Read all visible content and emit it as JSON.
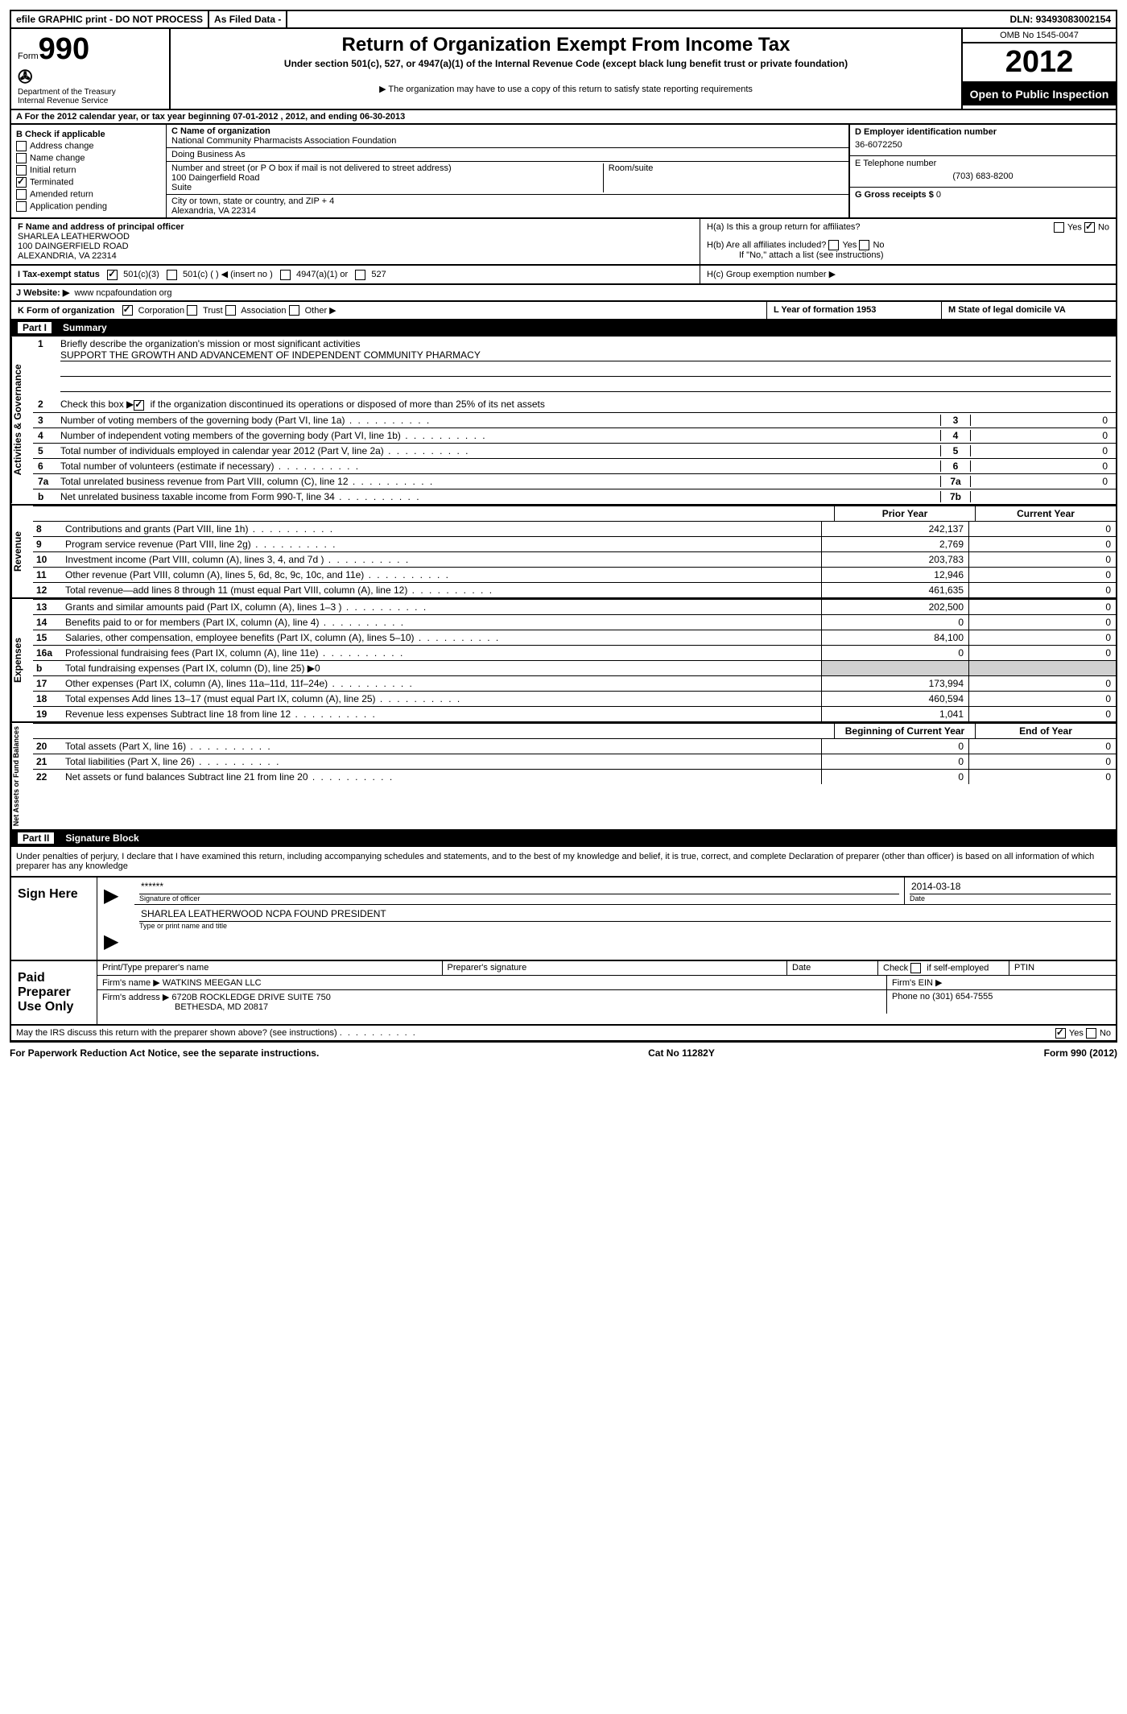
{
  "topbar": {
    "efile": "efile GRAPHIC print - DO NOT PROCESS",
    "asfiled": "As Filed Data -",
    "dln_label": "DLN:",
    "dln": "93493083002154"
  },
  "header": {
    "form_label": "Form",
    "form_num": "990",
    "dept": "Department of the Treasury",
    "irs": "Internal Revenue Service",
    "title": "Return of Organization Exempt From Income Tax",
    "subtitle": "Under section 501(c), 527, or 4947(a)(1) of the Internal Revenue Code (except black lung benefit trust or private foundation)",
    "note": "▶ The organization may have to use a copy of this return to satisfy state reporting requirements",
    "omb": "OMB No 1545-0047",
    "year": "2012",
    "open": "Open to Public Inspection"
  },
  "sectionA": "A  For the 2012 calendar year, or tax year beginning 07-01-2012     , 2012, and ending 06-30-2013",
  "checkboxes": {
    "header": "B Check if applicable",
    "items": [
      "Address change",
      "Name change",
      "Initial return",
      "Terminated",
      "Amended return",
      "Application pending"
    ]
  },
  "orgC": {
    "name_label": "C Name of organization",
    "name": "National Community Pharmacists Association Foundation",
    "dba_label": "Doing Business As",
    "street_label": "Number and street (or P O  box if mail is not delivered to street address)",
    "room_label": "Room/suite",
    "street": "100 Daingerfield Road",
    "suite": "Suite",
    "city_label": "City or town, state or country, and ZIP + 4",
    "city": "Alexandria, VA  22314"
  },
  "rightD": {
    "ein_label": "D Employer identification number",
    "ein": "36-6072250",
    "phone_label": "E Telephone number",
    "phone": "(703) 683-8200",
    "gross_label": "G Gross receipts $",
    "gross": "0"
  },
  "sectionF": {
    "label": "F  Name and address of principal officer",
    "name": "SHARLEA LEATHERWOOD",
    "addr1": "100 DAINGERFIELD ROAD",
    "addr2": "ALEXANDRIA, VA  22314"
  },
  "sectionH": {
    "ha": "H(a)  Is this a group return for affiliates?",
    "hb": "H(b)  Are all affiliates included?",
    "hb_note": "If \"No,\" attach a list  (see instructions)",
    "hc": "H(c)   Group exemption number ▶",
    "yes": "Yes",
    "no": "No"
  },
  "taxExempt": {
    "label": "I   Tax-exempt status",
    "opt1": "501(c)(3)",
    "opt2": "501(c) (   ) ◀ (insert no )",
    "opt3": "4947(a)(1) or",
    "opt4": "527"
  },
  "website": {
    "label": "J  Website: ▶",
    "value": "www ncpafoundation org"
  },
  "sectionK": {
    "label": "K Form of organization",
    "opts": [
      "Corporation",
      "Trust",
      "Association",
      "Other ▶"
    ],
    "year_label": "L Year of formation  1953",
    "state_label": "M State of legal domicile  VA"
  },
  "part1": {
    "title": "Part I",
    "label": "Summary"
  },
  "activities": {
    "vtab": "Activities & Governance",
    "line1": "Briefly describe the organization's mission or most significant activities",
    "mission": "SUPPORT THE GROWTH AND ADVANCEMENT OF INDEPENDENT COMMUNITY PHARMACY",
    "line2": "Check this box ▶    if the organization discontinued its operations or disposed of more than 25% of its net assets",
    "lines": [
      {
        "n": "3",
        "d": "Number of voting members of the governing body (Part VI, line 1a)",
        "box": "3",
        "v": "0"
      },
      {
        "n": "4",
        "d": "Number of independent voting members of the governing body (Part VI, line 1b)",
        "box": "4",
        "v": "0"
      },
      {
        "n": "5",
        "d": "Total number of individuals employed in calendar year 2012 (Part V, line 2a)",
        "box": "5",
        "v": "0"
      },
      {
        "n": "6",
        "d": "Total number of volunteers (estimate if necessary)",
        "box": "6",
        "v": "0"
      },
      {
        "n": "7a",
        "d": "Total unrelated business revenue from Part VIII, column (C), line 12",
        "box": "7a",
        "v": "0"
      },
      {
        "n": "b",
        "d": "Net unrelated business taxable income from Form 990-T, line 34",
        "box": "7b",
        "v": ""
      }
    ]
  },
  "revenue": {
    "vtab": "Revenue",
    "head1": "Prior Year",
    "head2": "Current Year",
    "rows": [
      {
        "n": "8",
        "d": "Contributions and grants (Part VIII, line 1h)",
        "p": "242,137",
        "c": "0"
      },
      {
        "n": "9",
        "d": "Program service revenue (Part VIII, line 2g)",
        "p": "2,769",
        "c": "0"
      },
      {
        "n": "10",
        "d": "Investment income (Part VIII, column (A), lines 3, 4, and 7d )",
        "p": "203,783",
        "c": "0"
      },
      {
        "n": "11",
        "d": "Other revenue (Part VIII, column (A), lines 5, 6d, 8c, 9c, 10c, and 11e)",
        "p": "12,946",
        "c": "0"
      },
      {
        "n": "12",
        "d": "Total revenue—add lines 8 through 11 (must equal Part VIII, column (A), line 12)",
        "p": "461,635",
        "c": "0"
      }
    ]
  },
  "expenses": {
    "vtab": "Expenses",
    "rows": [
      {
        "n": "13",
        "d": "Grants and similar amounts paid (Part IX, column (A), lines 1–3 )",
        "p": "202,500",
        "c": "0"
      },
      {
        "n": "14",
        "d": "Benefits paid to or for members (Part IX, column (A), line 4)",
        "p": "0",
        "c": "0"
      },
      {
        "n": "15",
        "d": "Salaries, other compensation, employee benefits (Part IX, column (A), lines 5–10)",
        "p": "84,100",
        "c": "0"
      },
      {
        "n": "16a",
        "d": "Professional fundraising fees (Part IX, column (A), line 11e)",
        "p": "0",
        "c": "0"
      },
      {
        "n": "b",
        "d": "Total fundraising expenses (Part IX, column (D), line 25) ▶0",
        "p": "",
        "c": "",
        "gray": true
      },
      {
        "n": "17",
        "d": "Other expenses (Part IX, column (A), lines 11a–11d, 11f–24e)",
        "p": "173,994",
        "c": "0"
      },
      {
        "n": "18",
        "d": "Total expenses  Add lines 13–17 (must equal Part IX, column (A), line 25)",
        "p": "460,594",
        "c": "0"
      },
      {
        "n": "19",
        "d": "Revenue less expenses  Subtract line 18 from line 12",
        "p": "1,041",
        "c": "0"
      }
    ]
  },
  "netassets": {
    "vtab": "Net Assets or Fund Balances",
    "head1": "Beginning of Current Year",
    "head2": "End of Year",
    "rows": [
      {
        "n": "20",
        "d": "Total assets (Part X, line 16)",
        "p": "0",
        "c": "0"
      },
      {
        "n": "21",
        "d": "Total liabilities (Part X, line 26)",
        "p": "0",
        "c": "0"
      },
      {
        "n": "22",
        "d": "Net assets or fund balances  Subtract line 21 from line 20",
        "p": "0",
        "c": "0"
      }
    ]
  },
  "part2": {
    "title": "Part II",
    "label": "Signature Block"
  },
  "perjury": "Under penalties of perjury, I declare that I have examined this return, including accompanying schedules and statements, and to the best of my knowledge and belief, it is true, correct, and complete  Declaration of preparer (other than officer) is based on all information of which preparer has any knowledge",
  "sign": {
    "label": "Sign Here",
    "sig": "******",
    "sig_label": "Signature of officer",
    "date": "2014-03-18",
    "date_label": "Date",
    "name": "SHARLEA LEATHERWOOD NCPA FOUND  PRESIDENT",
    "name_label": "Type or print name and title"
  },
  "paid": {
    "label": "Paid Preparer Use Only",
    "cols": [
      "Print/Type preparer's name",
      "Preparer's signature",
      "Date"
    ],
    "check_label": "Check         if self-employed",
    "ptin": "PTIN",
    "firm_name_label": "Firm's name    ▶",
    "firm_name": "WATKINS MEEGAN LLC",
    "firm_ein": "Firm's EIN ▶",
    "firm_addr_label": "Firm's address ▶",
    "firm_addr1": "6720B ROCKLEDGE DRIVE SUITE 750",
    "firm_addr2": "BETHESDA, MD  20817",
    "phone_label": "Phone no",
    "phone": "(301) 654-7555"
  },
  "discuss": "May the IRS discuss this return with the preparer shown above? (see instructions)",
  "footer": {
    "left": "For Paperwork Reduction Act Notice, see the separate instructions.",
    "center": "Cat No 11282Y",
    "right": "Form 990 (2012)"
  }
}
